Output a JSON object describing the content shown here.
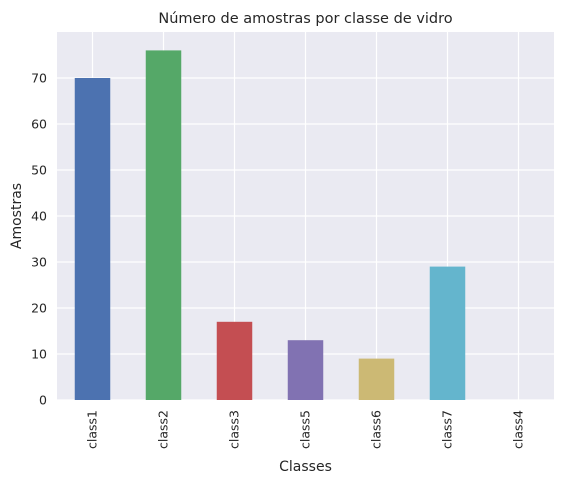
{
  "chart_data": {
    "type": "bar",
    "title": "Número de amostras por classe de vidro",
    "xlabel": "Classes",
    "ylabel": "Amostras",
    "categories": [
      "class1",
      "class2",
      "class3",
      "class5",
      "class6",
      "class7",
      "class4"
    ],
    "values": [
      70,
      76,
      17,
      13,
      9,
      29,
      0
    ],
    "colors": [
      "#4c72b0",
      "#55a868",
      "#c44e52",
      "#8172b2",
      "#ccb974",
      "#64b5cd",
      "#4c72b0"
    ],
    "ylim": [
      0,
      80
    ],
    "yticks": [
      0,
      10,
      20,
      30,
      40,
      50,
      60,
      70
    ],
    "grid": true,
    "legend": "none",
    "style": "seaborn-darkgrid"
  }
}
